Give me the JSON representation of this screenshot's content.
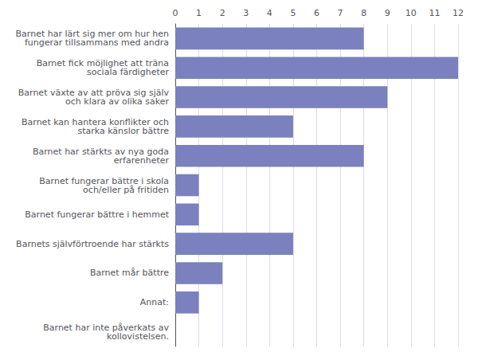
{
  "chart_data": {
    "type": "bar",
    "orientation": "horizontal",
    "categories": [
      "Barnet har inte påverkats av\nkollovistelsen.",
      "Annat:",
      "Barnet mår bättre",
      "Barnets självförtroende har stärkts",
      "Barnet fungerar bättre i hemmet",
      "Barnet fungerar bättre i skola\noch/eller på fritiden",
      "Barnet har stärkts av nya goda\nerfarenheter",
      "Barnet kan hantera konflikter och\nstarka känslor bättre",
      "Barnet växte av att pröva sig själv\noch klara av olika saker",
      "Barnet fick möjlighet att träna\nsociala färdigheter",
      "Barnet har lärt sig mer om hur hen\nfungerar tillsammans med andra"
    ],
    "values": [
      0,
      1,
      2,
      5,
      1,
      1,
      8,
      5,
      9,
      12,
      8
    ],
    "color": "#7b80be",
    "xlim": [
      0,
      12
    ],
    "xticks": [
      0,
      1,
      2,
      3,
      4,
      5,
      6,
      7,
      8,
      9,
      10,
      11,
      12
    ],
    "grid": true
  }
}
